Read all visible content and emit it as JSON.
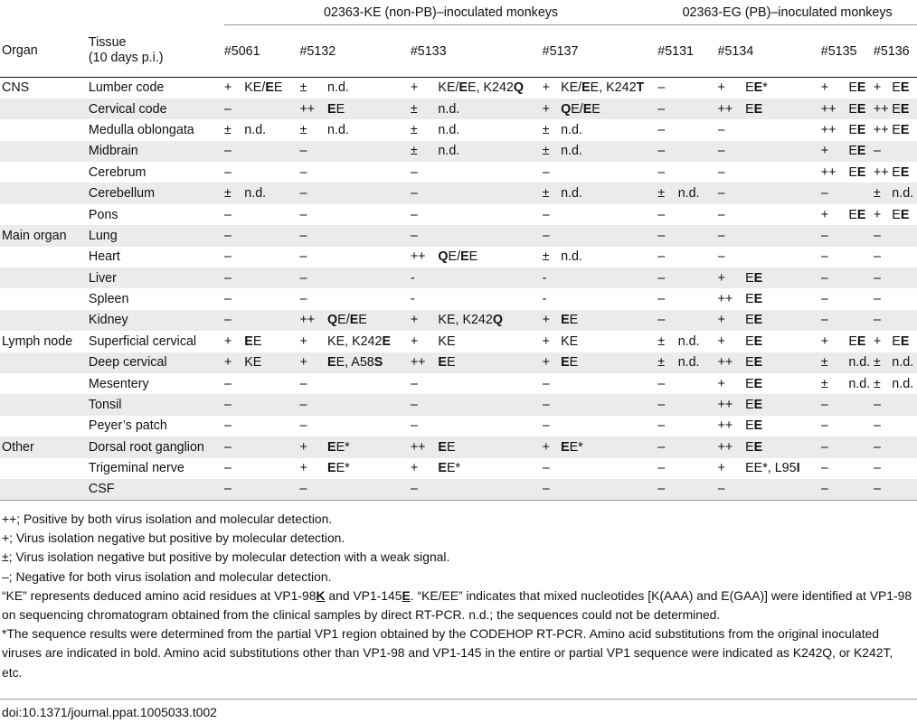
{
  "table": {
    "group_headers": [
      "02363-KE (non-PB)–inoculated monkeys",
      "02363-EG (PB)–inoculated monkeys"
    ],
    "columns": {
      "organ": "Organ",
      "tissue_line1": "Tissue",
      "tissue_line2": "(10 days p.i.)",
      "monkeys": [
        "#5061",
        "#5132",
        "#5133",
        "#5137",
        "#5131",
        "#5134",
        "#5135",
        "#5136"
      ]
    },
    "rows": [
      {
        "organ": "CNS",
        "tissue": "Lumber code",
        "cells": [
          [
            "+",
            "KE/<b>E</b>E"
          ],
          [
            "±",
            "n.d."
          ],
          [
            "+",
            "KE/<b>E</b>E, K242<b>Q</b>"
          ],
          [
            "+",
            "KE/<b>E</b>E, K242<b>T</b>"
          ],
          [
            "–",
            ""
          ],
          [
            "+",
            "E<b>E</b>*"
          ],
          [
            "+",
            "E<b>E</b>"
          ],
          [
            "+",
            "E<b>E</b>"
          ]
        ]
      },
      {
        "organ": "",
        "tissue": "Cervical code",
        "cells": [
          [
            "–",
            ""
          ],
          [
            "++",
            "<b>E</b>E"
          ],
          [
            "±",
            "n.d."
          ],
          [
            "+",
            "<b>Q</b>E/<b>E</b>E"
          ],
          [
            "–",
            ""
          ],
          [
            "++",
            "E<b>E</b>"
          ],
          [
            "++",
            "E<b>E</b>"
          ],
          [
            "++",
            "E<b>E</b>"
          ]
        ]
      },
      {
        "organ": "",
        "tissue": "Medulla oblongata",
        "cells": [
          [
            "±",
            "n.d."
          ],
          [
            "±",
            "n.d."
          ],
          [
            "±",
            "n.d."
          ],
          [
            "±",
            "n.d."
          ],
          [
            "–",
            ""
          ],
          [
            "–",
            ""
          ],
          [
            "++",
            "E<b>E</b>"
          ],
          [
            "++",
            "E<b>E</b>"
          ]
        ]
      },
      {
        "organ": "",
        "tissue": "Midbrain",
        "cells": [
          [
            "–",
            ""
          ],
          [
            "–",
            ""
          ],
          [
            "±",
            "n.d."
          ],
          [
            "±",
            "n.d."
          ],
          [
            "–",
            ""
          ],
          [
            "–",
            ""
          ],
          [
            "+",
            "E<b>E</b>"
          ],
          [
            "–",
            ""
          ]
        ]
      },
      {
        "organ": "",
        "tissue": "Cerebrum",
        "cells": [
          [
            "–",
            ""
          ],
          [
            "–",
            ""
          ],
          [
            "–",
            ""
          ],
          [
            "–",
            ""
          ],
          [
            "–",
            ""
          ],
          [
            "–",
            ""
          ],
          [
            "++",
            "E<b>E</b>"
          ],
          [
            "++",
            "E<b>E</b>"
          ]
        ]
      },
      {
        "organ": "",
        "tissue": "Cerebellum",
        "cells": [
          [
            "±",
            "n.d."
          ],
          [
            "–",
            ""
          ],
          [
            "–",
            ""
          ],
          [
            "±",
            "n.d."
          ],
          [
            "±",
            "n.d."
          ],
          [
            "–",
            ""
          ],
          [
            "–",
            ""
          ],
          [
            "±",
            "n.d."
          ]
        ]
      },
      {
        "organ": "",
        "tissue": "Pons",
        "cells": [
          [
            "–",
            ""
          ],
          [
            "–",
            ""
          ],
          [
            "–",
            ""
          ],
          [
            "–",
            ""
          ],
          [
            "–",
            ""
          ],
          [
            "–",
            ""
          ],
          [
            "+",
            "E<b>E</b>"
          ],
          [
            "+",
            "E<b>E</b>"
          ]
        ]
      },
      {
        "organ": "Main organ",
        "tissue": "Lung",
        "cells": [
          [
            "–",
            ""
          ],
          [
            "–",
            ""
          ],
          [
            "–",
            ""
          ],
          [
            "–",
            ""
          ],
          [
            "–",
            ""
          ],
          [
            "–",
            ""
          ],
          [
            "–",
            ""
          ],
          [
            "–",
            ""
          ]
        ]
      },
      {
        "organ": "",
        "tissue": "Heart",
        "cells": [
          [
            "–",
            ""
          ],
          [
            "–",
            ""
          ],
          [
            "++",
            "<b>Q</b>E/<b>E</b>E"
          ],
          [
            "±",
            "n.d."
          ],
          [
            "–",
            ""
          ],
          [
            "–",
            ""
          ],
          [
            "–",
            ""
          ],
          [
            "–",
            ""
          ]
        ]
      },
      {
        "organ": "",
        "tissue": "Liver",
        "cells": [
          [
            "–",
            ""
          ],
          [
            "–",
            ""
          ],
          [
            "-",
            ""
          ],
          [
            "-",
            ""
          ],
          [
            "–",
            ""
          ],
          [
            "+",
            "E<b>E</b>"
          ],
          [
            "–",
            ""
          ],
          [
            "–",
            ""
          ]
        ]
      },
      {
        "organ": "",
        "tissue": "Spleen",
        "cells": [
          [
            "–",
            ""
          ],
          [
            "–",
            ""
          ],
          [
            "-",
            ""
          ],
          [
            "-",
            ""
          ],
          [
            "–",
            ""
          ],
          [
            "++",
            "E<b>E</b>"
          ],
          [
            "–",
            ""
          ],
          [
            "–",
            ""
          ]
        ]
      },
      {
        "organ": "",
        "tissue": "Kidney",
        "cells": [
          [
            "–",
            ""
          ],
          [
            "++",
            "<b>Q</b>E/<b>E</b>E"
          ],
          [
            "+",
            "KE, K242<b>Q</b>"
          ],
          [
            "+",
            "<b>E</b>E"
          ],
          [
            "–",
            ""
          ],
          [
            "+",
            "E<b>E</b>"
          ],
          [
            "–",
            ""
          ],
          [
            "–",
            ""
          ]
        ]
      },
      {
        "organ": "Lymph node",
        "tissue": "Superficial cervical",
        "cells": [
          [
            "+",
            "<b>E</b>E"
          ],
          [
            "+",
            "KE, K242<b>E</b>"
          ],
          [
            "+",
            "KE"
          ],
          [
            "+",
            "KE"
          ],
          [
            "±",
            "n.d."
          ],
          [
            "+",
            "E<b>E</b>"
          ],
          [
            "+",
            "E<b>E</b>"
          ],
          [
            "+",
            "E<b>E</b>"
          ]
        ]
      },
      {
        "organ": "",
        "tissue": "Deep cervical",
        "cells": [
          [
            "+",
            "KE"
          ],
          [
            "+",
            "<b>E</b>E, A58<b>S</b>"
          ],
          [
            "++",
            "<b>E</b>E"
          ],
          [
            "+",
            "<b>E</b>E"
          ],
          [
            "±",
            "n.d."
          ],
          [
            "++",
            "E<b>E</b>"
          ],
          [
            "±",
            "n.d."
          ],
          [
            "±",
            "n.d."
          ]
        ]
      },
      {
        "organ": "",
        "tissue": "Mesentery",
        "cells": [
          [
            "–",
            ""
          ],
          [
            "–",
            ""
          ],
          [
            "–",
            ""
          ],
          [
            "–",
            ""
          ],
          [
            "–",
            ""
          ],
          [
            "+",
            "E<b>E</b>"
          ],
          [
            "±",
            "n.d."
          ],
          [
            "±",
            "n.d."
          ]
        ]
      },
      {
        "organ": "",
        "tissue": "Tonsil",
        "cells": [
          [
            "–",
            ""
          ],
          [
            "–",
            ""
          ],
          [
            "–",
            ""
          ],
          [
            "–",
            ""
          ],
          [
            "–",
            ""
          ],
          [
            "++",
            "E<b>E</b>"
          ],
          [
            "–",
            ""
          ],
          [
            "–",
            ""
          ]
        ]
      },
      {
        "organ": "",
        "tissue": "Peyer’s patch",
        "cells": [
          [
            "–",
            ""
          ],
          [
            "–",
            ""
          ],
          [
            "–",
            ""
          ],
          [
            "–",
            ""
          ],
          [
            "–",
            ""
          ],
          [
            "++",
            "E<b>E</b>"
          ],
          [
            "–",
            ""
          ],
          [
            "–",
            ""
          ]
        ]
      },
      {
        "organ": "Other",
        "tissue": "Dorsal root ganglion",
        "cells": [
          [
            "–",
            ""
          ],
          [
            "+",
            "<b>E</b>E*"
          ],
          [
            "++",
            "<b>E</b>E"
          ],
          [
            "+",
            "<b>E</b>E*"
          ],
          [
            "–",
            ""
          ],
          [
            "++",
            "E<b>E</b>"
          ],
          [
            "–",
            ""
          ],
          [
            "–",
            ""
          ]
        ]
      },
      {
        "organ": "",
        "tissue": "Trigeminal nerve",
        "cells": [
          [
            "–",
            ""
          ],
          [
            "+",
            "<b>E</b>E*"
          ],
          [
            "+",
            "<b>E</b>E*"
          ],
          [
            "–",
            ""
          ],
          [
            "–",
            ""
          ],
          [
            "+",
            "EE*, L95<b>I</b>"
          ],
          [
            "–",
            ""
          ],
          [
            "–",
            ""
          ]
        ]
      },
      {
        "organ": "",
        "tissue": "CSF",
        "cells": [
          [
            "–",
            ""
          ],
          [
            "–",
            ""
          ],
          [
            "–",
            ""
          ],
          [
            "–",
            ""
          ],
          [
            "–",
            ""
          ],
          [
            "–",
            ""
          ],
          [
            "–",
            ""
          ],
          [
            "–",
            ""
          ]
        ]
      }
    ]
  },
  "footnotes": [
    "++; Positive by both virus isolation and molecular detection.",
    "+; Virus isolation negative but positive by molecular detection.",
    "±; Virus isolation negative but positive by molecular detection with a weak signal.",
    "–; Negative for both virus isolation and molecular detection.",
    "“KE” represents deduced amino acid residues at VP1-98<b><u>K</u></b> and VP1-145<b><u>E</u></b>. “KE/EE” indicates that mixed nucleotides [K(AAA) and E(GAA)] were identified at VP1-98 on sequencing chromatogram obtained from the clinical samples by direct RT-PCR. n.d.; the sequences could not be determined.",
    "*The sequence results were determined from the partial VP1 region obtained by the CODEHOP RT-PCR. Amino acid substitutions from the original inoculated viruses are indicated in bold. Amino acid substitutions other than VP1-98 and VP1-145 in the entire or partial VP1 sequence were indicated as K242Q, or K242T, etc."
  ],
  "doi": "doi:10.1371/journal.ppat.1005033.t002"
}
